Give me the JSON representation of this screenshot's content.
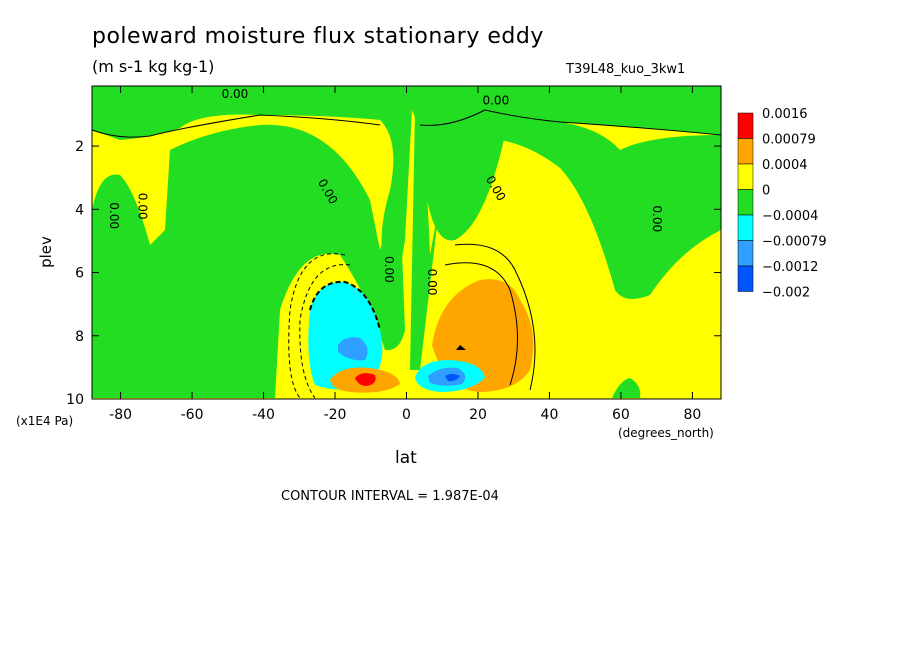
{
  "chart_data": {
    "type": "heatmap",
    "title": "poleward moisture flux stationary eddy",
    "units": "(m s-1 kg kg-1)",
    "run_label": "T39L48_kuo_3kw1",
    "xlabel": "lat",
    "x_unit": "(degrees_north)",
    "ylabel": "plev",
    "y_unit": "(x1E4 Pa)",
    "contour_interval": "CONTOUR INTERVAL = 1.987E-04",
    "xlim": [
      -88,
      88
    ],
    "ylim": [
      10,
      0.1
    ],
    "x_ticks": [
      -80,
      -60,
      -40,
      -20,
      0,
      20,
      40,
      60,
      80
    ],
    "y_ticks": [
      2,
      4,
      6,
      8,
      10
    ],
    "contour_labels": [
      {
        "text": "0.00",
        "x": -48,
        "y": 0.1
      },
      {
        "text": "0.00",
        "x": 25,
        "y": 0.3
      },
      {
        "text": "0.00",
        "x": -83,
        "y": 4.2
      },
      {
        "text": "0.00",
        "x": -75,
        "y": 3.9
      },
      {
        "text": "0.00",
        "x": -23,
        "y": 3.5
      },
      {
        "text": "0.00",
        "x": 24,
        "y": 3.4
      },
      {
        "text": "0.00",
        "x": 69,
        "y": 4.3
      },
      {
        "text": "0.00",
        "x": -6,
        "y": 5.9
      },
      {
        "text": "0.00",
        "x": 6,
        "y": 6.3
      }
    ],
    "legend": [
      {
        "label": "0.0016",
        "color": "#ff0000"
      },
      {
        "label": "0.00079",
        "color": "#ffa500"
      },
      {
        "label": "0.0004",
        "color": "#ffff00"
      },
      {
        "label": "0",
        "color": "#22dd22"
      },
      {
        "label": "−0.0004",
        "color": "#00ffff"
      },
      {
        "label": "−0.00079",
        "color": "#2fa0ff"
      },
      {
        "label": "−0.0012",
        "color": "#0055ff"
      },
      {
        "label": "−0.002",
        "color": "#0055ff"
      }
    ]
  }
}
